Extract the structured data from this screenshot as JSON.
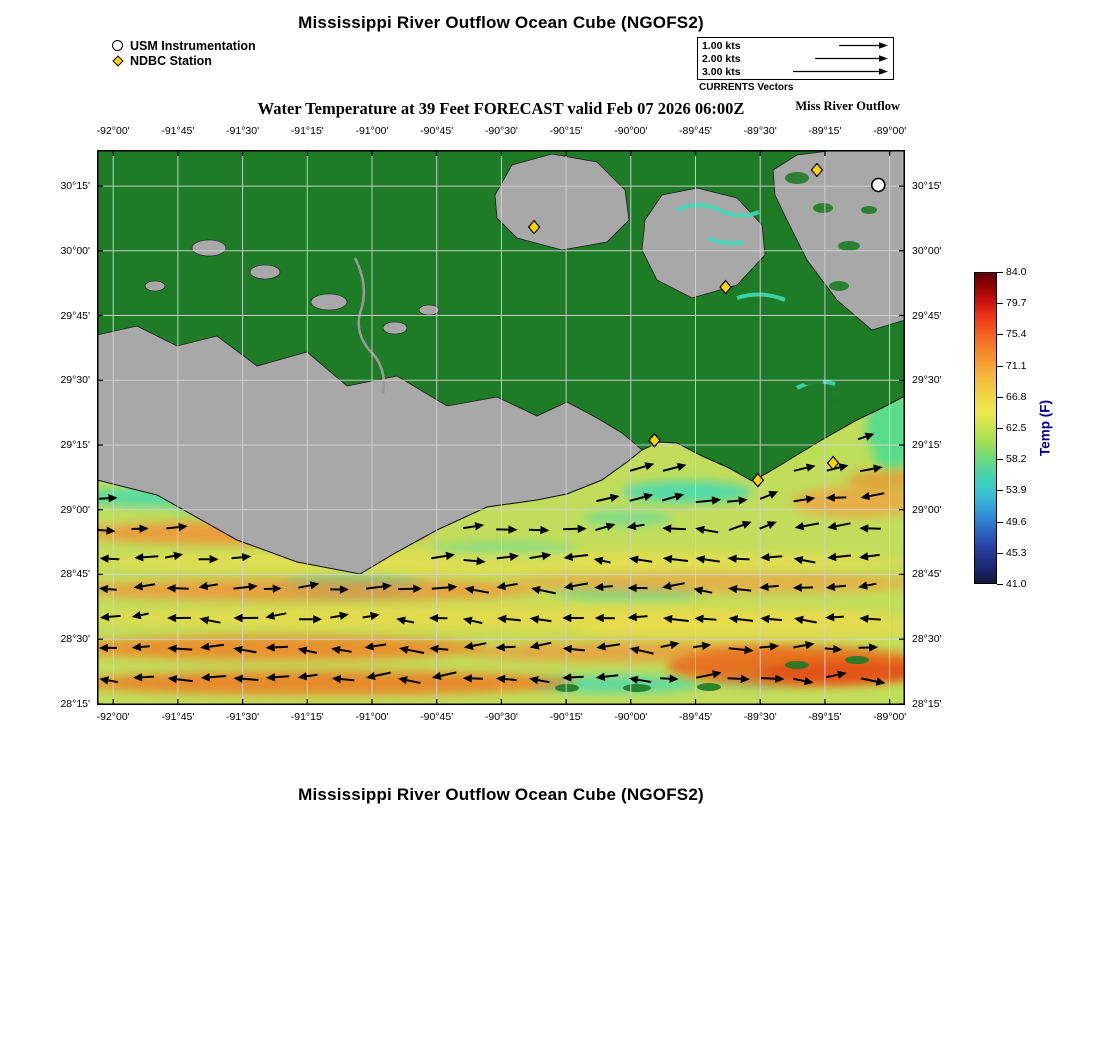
{
  "header": {
    "title": "Mississippi River Outflow Ocean Cube (NGOFS2)",
    "legend": {
      "usm": "USM Instrumentation",
      "ndbc": "NDBC Station"
    },
    "vector_scale": {
      "caption": "CURRENTS Vectors",
      "entries": [
        "1.00 kts",
        "2.00 kts",
        "3.00 kts"
      ]
    },
    "subtitle": "Water Temperature at 39 Feet FORECAST valid Feb 07 2026 06:00Z",
    "region_label": "Miss River Outflow"
  },
  "map": {
    "x_tick_labels": [
      "-92°00'",
      "-91°45'",
      "-91°30'",
      "-91°15'",
      "-91°00'",
      "-90°45'",
      "-90°30'",
      "-90°15'",
      "-90°00'",
      "-89°45'",
      "-89°30'",
      "-89°15'",
      "-89°00'"
    ],
    "y_tick_labels": [
      "30°15'",
      "30°00'",
      "29°45'",
      "29°30'",
      "29°15'",
      "29°00'",
      "28°45'",
      "28°30'",
      "28°15'"
    ],
    "stations": {
      "ndbc": [
        {
          "fx": 0.891,
          "fy": 0.036
        },
        {
          "fx": 0.541,
          "fy": 0.139
        },
        {
          "fx": 0.778,
          "fy": 0.247
        },
        {
          "fx": 0.69,
          "fy": 0.523
        },
        {
          "fx": 0.818,
          "fy": 0.595
        },
        {
          "fx": 0.911,
          "fy": 0.564
        }
      ],
      "usm": [
        {
          "fx": 0.967,
          "fy": 0.063
        }
      ]
    },
    "colors": {
      "land_green": "#1e7b26",
      "land_gray": "#a8a8a8",
      "water_base": "#c2dd5c",
      "cyan_patch": "#3fd9b4",
      "orange_band": "#f08428",
      "deep_orange": "#e25014",
      "grid_line": "#d4d4d4",
      "ndbc_yellow": "#ffd400",
      "temp_label_blue": "#00008b"
    }
  },
  "colorbar": {
    "label": "Temp (F)",
    "ticks": [
      "84.0",
      "79.7",
      "75.4",
      "71.1",
      "66.8",
      "62.5",
      "58.2",
      "53.9",
      "49.6",
      "45.3",
      "41.0"
    ]
  },
  "footer": {
    "title": "Mississippi River Outflow Ocean Cube (NGOFS2)"
  }
}
